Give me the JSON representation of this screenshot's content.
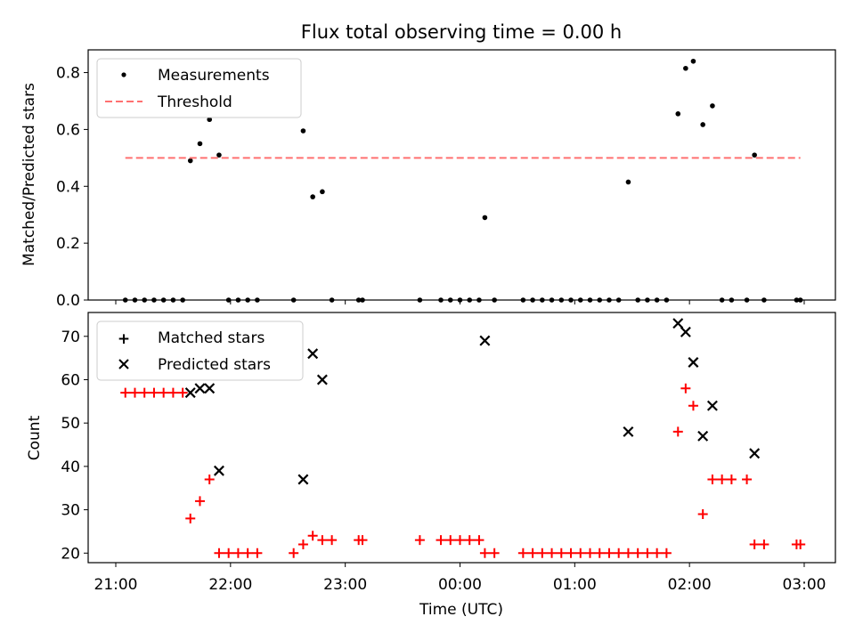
{
  "chart_data": [
    {
      "type": "scatter",
      "title": "Flux total observing time = 0.00 h",
      "xlabel": "",
      "ylabel": "Matched/Predicted stars",
      "x_ticks": [
        "21:00",
        "22:00",
        "23:00",
        "00:00",
        "01:00",
        "02:00",
        "03:00"
      ],
      "ylim": [
        0,
        0.88
      ],
      "y_ticks": [
        "0.0",
        "0.2",
        "0.4",
        "0.6",
        "0.8"
      ],
      "legend_position": "upper-left",
      "series": [
        {
          "name": "Measurements",
          "color": "#000000",
          "marker": "dot",
          "points": [
            [
              "21:05",
              0
            ],
            [
              "21:10",
              0
            ],
            [
              "21:15",
              0
            ],
            [
              "21:20",
              0
            ],
            [
              "21:25",
              0
            ],
            [
              "21:30",
              0
            ],
            [
              "21:35",
              0
            ],
            [
              "21:39",
              0.49
            ],
            [
              "21:44",
              0.55
            ],
            [
              "21:49",
              0.635
            ],
            [
              "21:54",
              0.51
            ],
            [
              "21:59",
              0
            ],
            [
              "22:04",
              0
            ],
            [
              "22:09",
              0
            ],
            [
              "22:14",
              0
            ],
            [
              "22:33",
              0
            ],
            [
              "22:38",
              0.595
            ],
            [
              "22:43",
              0.363
            ],
            [
              "22:48",
              0.381
            ],
            [
              "22:53",
              0
            ],
            [
              "23:07",
              0
            ],
            [
              "23:09",
              0
            ],
            [
              "23:39",
              0
            ],
            [
              "23:50",
              0
            ],
            [
              "23:55",
              0
            ],
            [
              "00:00",
              0
            ],
            [
              "00:05",
              0
            ],
            [
              "00:10",
              0
            ],
            [
              "00:13",
              0.29
            ],
            [
              "00:18",
              0
            ],
            [
              "00:33",
              0
            ],
            [
              "00:38",
              0
            ],
            [
              "00:43",
              0
            ],
            [
              "00:48",
              0
            ],
            [
              "00:53",
              0
            ],
            [
              "00:58",
              0
            ],
            [
              "01:03",
              0
            ],
            [
              "01:08",
              0
            ],
            [
              "01:13",
              0
            ],
            [
              "01:18",
              0
            ],
            [
              "01:23",
              0
            ],
            [
              "01:28",
              0.415
            ],
            [
              "01:33",
              0
            ],
            [
              "01:38",
              0
            ],
            [
              "01:43",
              0
            ],
            [
              "01:48",
              0
            ],
            [
              "01:54",
              0.655
            ],
            [
              "01:58",
              0.815
            ],
            [
              "02:02",
              0.84
            ],
            [
              "02:07",
              0.617
            ],
            [
              "02:12",
              0.683
            ],
            [
              "02:17",
              0
            ],
            [
              "02:22",
              0
            ],
            [
              "02:30",
              0
            ],
            [
              "02:34",
              0.51
            ],
            [
              "02:39",
              0
            ],
            [
              "02:56",
              0
            ],
            [
              "02:58",
              0
            ]
          ]
        },
        {
          "name": "Threshold",
          "color": "#ff7070",
          "style": "dashed",
          "x": [
            "21:05",
            "02:58"
          ],
          "y": [
            0.5,
            0.5
          ]
        }
      ]
    },
    {
      "type": "scatter",
      "title": "",
      "xlabel": "Time (UTC)",
      "ylabel": "Count",
      "x_ticks": [
        "21:00",
        "22:00",
        "23:00",
        "00:00",
        "01:00",
        "02:00",
        "03:00"
      ],
      "ylim": [
        17.8,
        75.5
      ],
      "y_ticks": [
        "20",
        "30",
        "40",
        "50",
        "60",
        "70"
      ],
      "legend_position": "upper-left",
      "series": [
        {
          "name": "Matched stars",
          "color": "#ff0000",
          "marker": "plus",
          "points": [
            [
              "21:05",
              57
            ],
            [
              "21:10",
              57
            ],
            [
              "21:15",
              57
            ],
            [
              "21:20",
              57
            ],
            [
              "21:25",
              57
            ],
            [
              "21:30",
              57
            ],
            [
              "21:35",
              57
            ],
            [
              "21:39",
              28
            ],
            [
              "21:44",
              32
            ],
            [
              "21:49",
              37
            ],
            [
              "21:54",
              20
            ],
            [
              "21:59",
              20
            ],
            [
              "22:04",
              20
            ],
            [
              "22:09",
              20
            ],
            [
              "22:14",
              20
            ],
            [
              "22:33",
              20
            ],
            [
              "22:38",
              22
            ],
            [
              "22:43",
              24
            ],
            [
              "22:48",
              23
            ],
            [
              "22:53",
              23
            ],
            [
              "23:07",
              23
            ],
            [
              "23:09",
              23
            ],
            [
              "23:39",
              23
            ],
            [
              "23:50",
              23
            ],
            [
              "23:55",
              23
            ],
            [
              "00:00",
              23
            ],
            [
              "00:05",
              23
            ],
            [
              "00:10",
              23
            ],
            [
              "00:13",
              20
            ],
            [
              "00:18",
              20
            ],
            [
              "00:33",
              20
            ],
            [
              "00:38",
              20
            ],
            [
              "00:43",
              20
            ],
            [
              "00:48",
              20
            ],
            [
              "00:53",
              20
            ],
            [
              "00:58",
              20
            ],
            [
              "01:03",
              20
            ],
            [
              "01:08",
              20
            ],
            [
              "01:13",
              20
            ],
            [
              "01:18",
              20
            ],
            [
              "01:23",
              20
            ],
            [
              "01:28",
              20
            ],
            [
              "01:33",
              20
            ],
            [
              "01:38",
              20
            ],
            [
              "01:43",
              20
            ],
            [
              "01:48",
              20
            ],
            [
              "01:54",
              48
            ],
            [
              "01:58",
              58
            ],
            [
              "02:02",
              54
            ],
            [
              "02:07",
              29
            ],
            [
              "02:12",
              37
            ],
            [
              "02:17",
              37
            ],
            [
              "02:22",
              37
            ],
            [
              "02:30",
              37
            ],
            [
              "02:34",
              22
            ],
            [
              "02:39",
              22
            ],
            [
              "02:56",
              22
            ],
            [
              "02:58",
              22
            ]
          ]
        },
        {
          "name": "Predicted stars",
          "color": "#000000",
          "marker": "x",
          "points": [
            [
              "21:39",
              57
            ],
            [
              "21:44",
              58
            ],
            [
              "21:49",
              58
            ],
            [
              "21:54",
              39
            ],
            [
              "22:38",
              37
            ],
            [
              "22:43",
              66
            ],
            [
              "22:48",
              60
            ],
            [
              "00:13",
              69
            ],
            [
              "01:28",
              48
            ],
            [
              "01:54",
              73
            ],
            [
              "01:58",
              71
            ],
            [
              "02:02",
              64
            ],
            [
              "02:07",
              47
            ],
            [
              "02:12",
              54
            ],
            [
              "02:34",
              43
            ]
          ]
        }
      ]
    }
  ]
}
